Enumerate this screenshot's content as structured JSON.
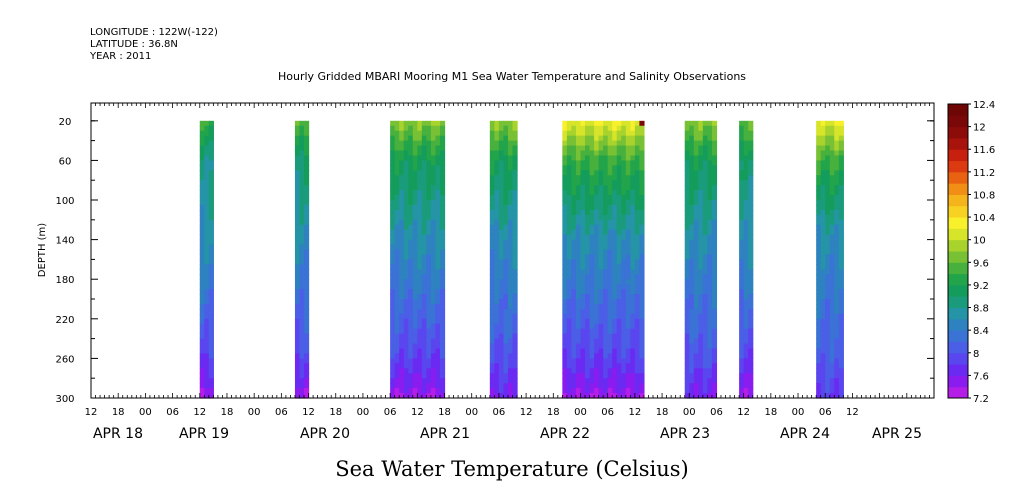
{
  "header": {
    "longitude": "LONGITUDE : 122W(-122)",
    "latitude": "LATITUDE : 36.8N",
    "year": "YEAR : 2011",
    "title": "Hourly Gridded MBARI Mooring M1 Sea Water Temperature and Salinity Observations"
  },
  "footer": {
    "variable_label": "Sea Water Temperature (Celsius)"
  },
  "chart_data": {
    "type": "heatmap",
    "title": "Hourly Gridded MBARI Mooring M1 Sea Water Temperature and Salinity Observations",
    "xlabel": "",
    "ylabel": "DEPTH (m)",
    "y_inverted": true,
    "ylim": [
      300,
      2
    ],
    "y_ticks": [
      20,
      60,
      100,
      140,
      180,
      220,
      260,
      300
    ],
    "x_range_hours": [
      "2011-04-18 06:00",
      "2011-04-25 18:00"
    ],
    "x_hour_tick_labels": [
      "12",
      "18",
      "00",
      "06",
      "12",
      "18",
      "00",
      "06",
      "12",
      "18",
      "00",
      "06",
      "12",
      "18",
      "00",
      "06",
      "12",
      "18",
      "00",
      "06",
      "12",
      "18",
      "00",
      "06",
      "12",
      "18",
      "00",
      "06",
      "12"
    ],
    "x_date_labels": [
      {
        "label": "APR 18",
        "hour": 0
      },
      {
        "label": "APR 19",
        "hour": 24
      },
      {
        "label": "APR 20",
        "hour": 48
      },
      {
        "label": "APR 21",
        "hour": 72
      },
      {
        "label": "APR 22",
        "hour": 96
      },
      {
        "label": "APR 23",
        "hour": 120
      },
      {
        "label": "APR 24",
        "hour": 144
      },
      {
        "label": "APR 25",
        "hour": 168
      }
    ],
    "colorbar": {
      "levels": [
        7.2,
        7.4,
        7.6,
        7.8,
        8.0,
        8.2,
        8.4,
        8.6,
        8.8,
        9.0,
        9.2,
        9.4,
        9.6,
        9.8,
        10.0,
        10.2,
        10.4,
        10.6,
        10.8,
        11.0,
        11.2,
        11.4,
        11.6,
        11.8,
        12.0,
        12.2,
        12.4
      ],
      "labels": [
        "7.2",
        "7.6",
        "8",
        "8.4",
        "8.8",
        "9.2",
        "9.6",
        "10",
        "10.4",
        "10.8",
        "11.2",
        "11.6",
        "12",
        "12.4"
      ],
      "colors": [
        "#b51ee6",
        "#8a1cf0",
        "#6a2af2",
        "#5a46ee",
        "#4a5ee6",
        "#3a72d6",
        "#2e82c0",
        "#2494a6",
        "#1a9c7c",
        "#149c5c",
        "#22a44a",
        "#48b03c",
        "#78c034",
        "#a8d22c",
        "#d6e42a",
        "#f8f02a",
        "#f8d222",
        "#f6b41c",
        "#f08e16",
        "#e86212",
        "#dc3a10",
        "#c8200e",
        "#a8140c",
        "#8c0c0a",
        "#7a0808",
        "#6e0606"
      ]
    },
    "depth_profile_typical": [
      {
        "depth": 20,
        "temp": 9.6
      },
      {
        "depth": 60,
        "temp": 9.0
      },
      {
        "depth": 100,
        "temp": 8.8
      },
      {
        "depth": 140,
        "temp": 8.6
      },
      {
        "depth": 180,
        "temp": 8.4
      },
      {
        "depth": 220,
        "temp": 8.2
      },
      {
        "depth": 260,
        "temp": 8.0
      },
      {
        "depth": 300,
        "temp": 7.6
      }
    ],
    "segments": [
      {
        "start_hour": 30,
        "end_hour": 33,
        "surface_temp": 9.4,
        "bottom_temp": 7.4
      },
      {
        "start_hour": 51,
        "end_hour": 54,
        "surface_temp": 9.6,
        "bottom_temp": 7.4
      },
      {
        "start_hour": 72,
        "end_hour": 84,
        "surface_temp": 9.8,
        "bottom_temp": 7.4
      },
      {
        "start_hour": 94,
        "end_hour": 100,
        "surface_temp": 9.8,
        "bottom_temp": 7.6
      },
      {
        "start_hour": 110,
        "end_hour": 128,
        "surface_temp": 10.2,
        "bottom_temp": 7.4,
        "max_temp": 12.2
      },
      {
        "start_hour": 137,
        "end_hour": 144,
        "surface_temp": 9.8,
        "bottom_temp": 7.6
      },
      {
        "start_hour": 149,
        "end_hour": 152,
        "surface_temp": 9.6,
        "bottom_temp": 7.4
      },
      {
        "start_hour": 166,
        "end_hour": 172,
        "surface_temp": 10.2,
        "bottom_temp": 7.8
      }
    ]
  }
}
